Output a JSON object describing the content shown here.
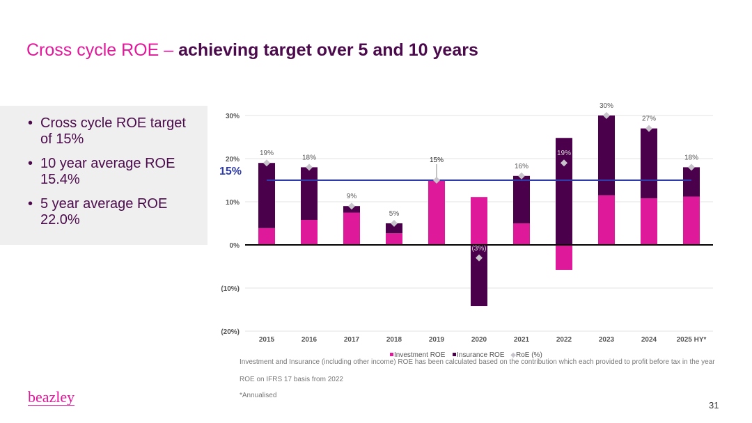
{
  "title": {
    "part1": "Cross cycle ROE – ",
    "part2": "achieving target over 5 and 10 years"
  },
  "bullets": [
    "Cross cycle ROE target of 15%",
    "10 year average ROE 15.4%",
    "5 year average ROE 22.0%"
  ],
  "chart_data": {
    "type": "bar",
    "stacked": true,
    "categories": [
      "2015",
      "2016",
      "2017",
      "2018",
      "2019",
      "2020",
      "2021",
      "2022",
      "2023",
      "2024",
      "2025 HY*"
    ],
    "series": [
      {
        "name": "Investment ROE",
        "color": "#DE1A9A",
        "values": [
          3.9,
          5.8,
          7.5,
          2.7,
          15.0,
          11.1,
          5.0,
          -5.8,
          11.5,
          10.8,
          11.2
        ]
      },
      {
        "name": "Insurance ROE",
        "color": "#4B004B",
        "values": [
          15.1,
          12.2,
          1.5,
          2.3,
          0.0,
          -14.2,
          11.0,
          24.8,
          18.5,
          16.2,
          6.8
        ]
      },
      {
        "name": "RoE (%)",
        "type": "scatter",
        "marker": "diamond",
        "color": "#C8C4CC",
        "values": [
          19,
          18,
          9,
          5,
          15,
          -3,
          16,
          19,
          30,
          27,
          18
        ]
      }
    ],
    "data_labels": [
      "19%",
      "18%",
      "9%",
      "5%",
      "15%",
      "(3%)",
      "16%",
      "19%",
      "30%",
      "27%",
      "18%"
    ],
    "target": {
      "value": 15,
      "label": "15%",
      "color": "#2E3BAA"
    },
    "ylim": [
      -20,
      30
    ],
    "yticks": [
      -20,
      -10,
      0,
      10,
      20,
      30
    ],
    "ytick_labels": [
      "(20%)",
      "(10%)",
      "0%",
      "10%",
      "20%",
      "30%"
    ],
    "grid": true,
    "legend_placement": "bottom"
  },
  "notes": [
    "Investment and Insurance (including other income) ROE has been calculated based on the contribution which each provided to profit before tax in the year",
    "ROE on IFRS 17 basis from 2022",
    "*Annualised"
  ],
  "logo": "beazley",
  "page_number": "31"
}
